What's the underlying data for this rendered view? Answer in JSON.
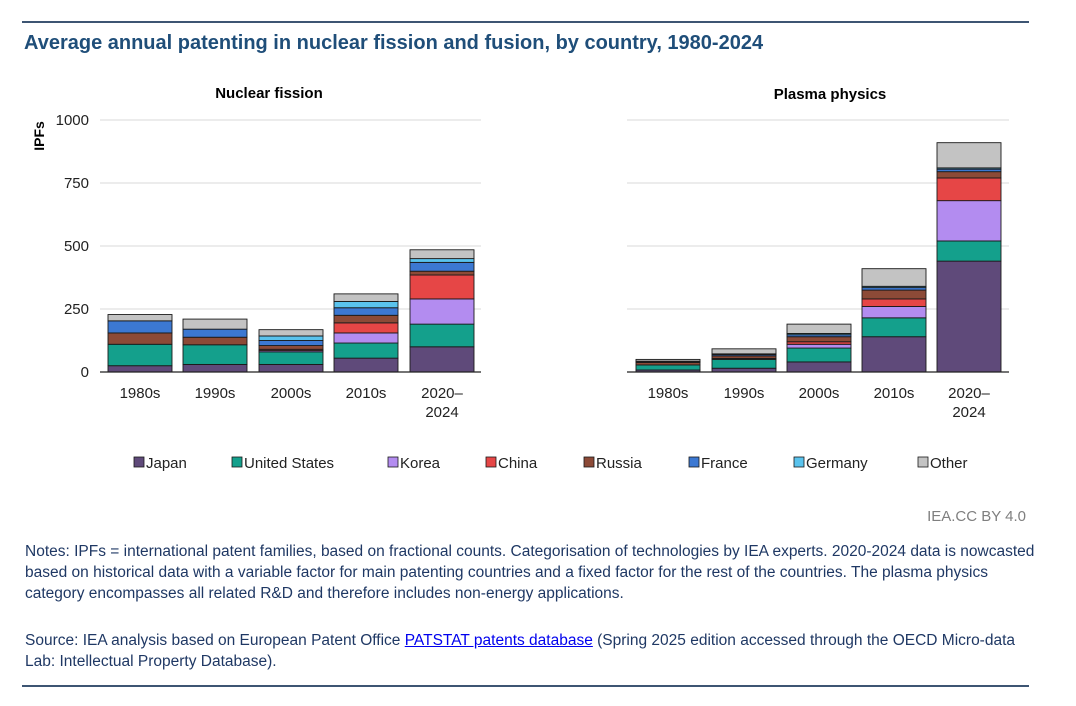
{
  "title": "Average annual patenting in nuclear fission and fusion, by country, 1980-2024",
  "chart_data": [
    {
      "type": "stacked-bar",
      "title": "Nuclear fission",
      "ylabel": "IPFs",
      "xlabel": "",
      "ylim": [
        0,
        1000
      ],
      "yticks": [
        0,
        250,
        500,
        750,
        1000
      ],
      "categories": [
        "1980s",
        "1990s",
        "2000s",
        "2010s",
        "2020–\n2024"
      ],
      "series": [
        {
          "name": "Japan",
          "values": [
            25,
            30,
            30,
            55,
            100
          ]
        },
        {
          "name": "United States",
          "values": [
            85,
            78,
            50,
            60,
            90
          ]
        },
        {
          "name": "Korea",
          "values": [
            0,
            0,
            5,
            40,
            100
          ]
        },
        {
          "name": "China",
          "values": [
            0,
            0,
            5,
            40,
            95
          ]
        },
        {
          "name": "Russia",
          "values": [
            45,
            30,
            15,
            30,
            15
          ]
        },
        {
          "name": "France",
          "values": [
            48,
            32,
            20,
            30,
            35
          ]
        },
        {
          "name": "Germany",
          "values": [
            0,
            0,
            18,
            25,
            15
          ]
        },
        {
          "name": "Other",
          "values": [
            25,
            40,
            25,
            30,
            35
          ]
        }
      ]
    },
    {
      "type": "stacked-bar",
      "title": "Plasma physics",
      "ylabel": "",
      "xlabel": "",
      "ylim": [
        0,
        1000
      ],
      "yticks": [
        0,
        250,
        500,
        750,
        1000
      ],
      "categories": [
        "1980s",
        "1990s",
        "2000s",
        "2010s",
        "2020–\n2024"
      ],
      "series": [
        {
          "name": "Japan",
          "values": [
            8,
            15,
            40,
            140,
            440
          ]
        },
        {
          "name": "United States",
          "values": [
            20,
            35,
            55,
            75,
            80
          ]
        },
        {
          "name": "Korea",
          "values": [
            0,
            2,
            15,
            45,
            160
          ]
        },
        {
          "name": "China",
          "values": [
            0,
            2,
            10,
            30,
            90
          ]
        },
        {
          "name": "Russia",
          "values": [
            10,
            10,
            20,
            35,
            25
          ]
        },
        {
          "name": "France",
          "values": [
            3,
            5,
            8,
            10,
            10
          ]
        },
        {
          "name": "Germany",
          "values": [
            2,
            3,
            5,
            5,
            5
          ]
        },
        {
          "name": "Other",
          "values": [
            7,
            20,
            37,
            70,
            100
          ]
        }
      ]
    }
  ],
  "legend": [
    {
      "name": "Japan",
      "color": "#5f4a7a"
    },
    {
      "name": "United States",
      "color": "#14a08c"
    },
    {
      "name": "Korea",
      "color": "#b38cf0"
    },
    {
      "name": "China",
      "color": "#e64646"
    },
    {
      "name": "Russia",
      "color": "#8c4a37"
    },
    {
      "name": "France",
      "color": "#3c78d2"
    },
    {
      "name": "Germany",
      "color": "#5ac3ed"
    },
    {
      "name": "Other",
      "color": "#c3c3c3"
    }
  ],
  "credit": "IEA.CC BY 4.0",
  "notes": "Notes: IPFs = international patent families, based on fractional counts. Categorisation of technologies by IEA experts. 2020-2024 data is nowcasted based on historical data with a variable factor for main patenting countries and a fixed factor for the rest of the countries. The plasma physics category encompasses all related R&D and therefore includes non-energy applications.",
  "source": {
    "prefix": "Source: IEA analysis based on European Patent Office ",
    "link_text": "PATSTAT patents database",
    "suffix": " (Spring 2025 edition accessed through the OECD Micro-data Lab: Intellectual Property Database)."
  }
}
